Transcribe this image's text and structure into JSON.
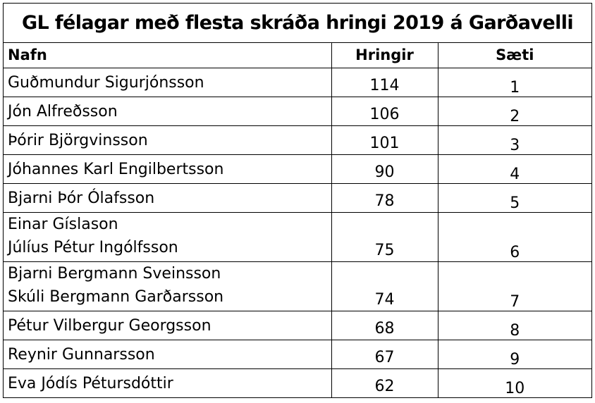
{
  "title": "GL félagar með flesta skráða hringi 2019 á Garðavelli",
  "columns": {
    "name": "Nafn",
    "rounds": "Hringir",
    "rank": "Sæti"
  },
  "rows": [
    {
      "names": [
        "Guðmundur Sigurjónsson"
      ],
      "rounds": "114",
      "rank": "1"
    },
    {
      "names": [
        "Jón Alfreðsson"
      ],
      "rounds": "106",
      "rank": "2"
    },
    {
      "names": [
        "Þórir Björgvinsson"
      ],
      "rounds": "101",
      "rank": "3"
    },
    {
      "names": [
        "Jóhannes Karl Engilbertsson"
      ],
      "rounds": "90",
      "rank": "4"
    },
    {
      "names": [
        "Bjarni Þór Ólafsson"
      ],
      "rounds": "78",
      "rank": "5"
    },
    {
      "names": [
        "Einar Gíslason",
        "Júlíus Pétur Ingólfsson"
      ],
      "rounds": "75",
      "rank": "6"
    },
    {
      "names": [
        "Bjarni Bergmann Sveinsson",
        "Skúli Bergmann Garðarsson"
      ],
      "rounds": "74",
      "rank": "7"
    },
    {
      "names": [
        "Pétur Vilbergur Georgsson"
      ],
      "rounds": "68",
      "rank": "8"
    },
    {
      "names": [
        "Reynir Gunnarsson"
      ],
      "rounds": "67",
      "rank": "9"
    },
    {
      "names": [
        "Eva Jódís Pétursdóttir"
      ],
      "rounds": "62",
      "rank": "10"
    }
  ]
}
